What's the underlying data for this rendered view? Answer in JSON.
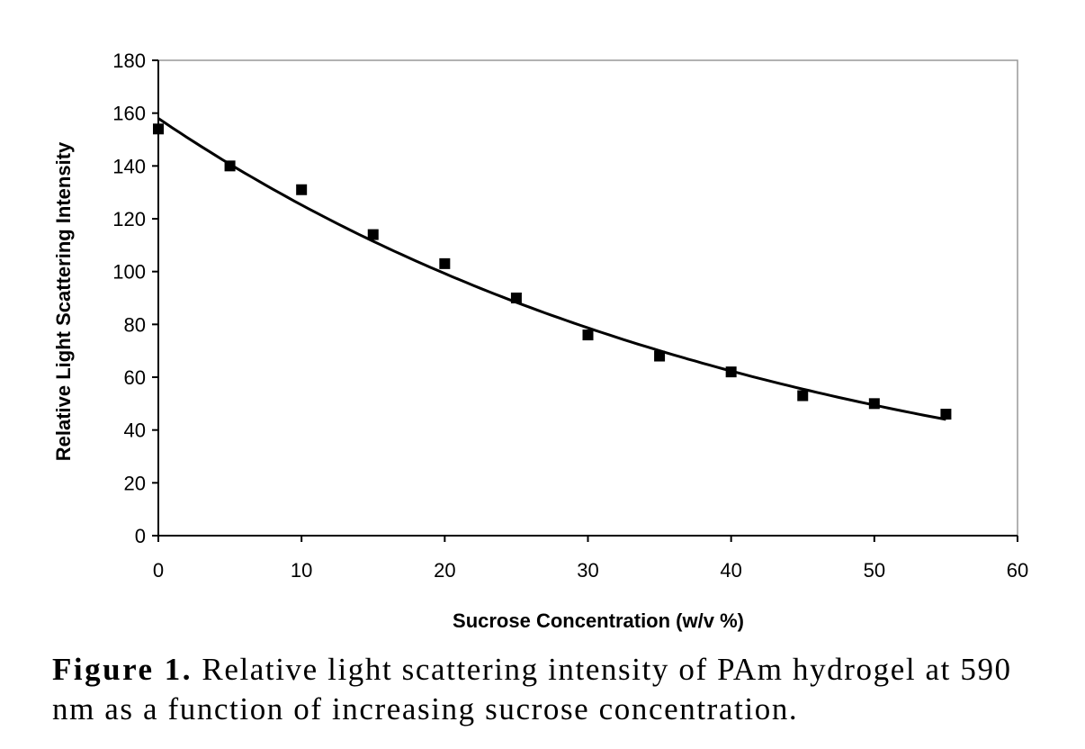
{
  "chart_data": {
    "type": "scatter",
    "xlabel": "Sucrose Concentration (w/v %)",
    "ylabel": "Relative Light Scattering Intensity",
    "xlim": [
      0,
      60
    ],
    "ylim": [
      0,
      180
    ],
    "xticks": [
      "0",
      "10",
      "20",
      "30",
      "40",
      "50",
      "60"
    ],
    "yticks": [
      "0",
      "20",
      "40",
      "60",
      "80",
      "100",
      "120",
      "140",
      "160",
      "180"
    ],
    "grid": false,
    "legend": "none",
    "marker": "square",
    "series": [
      {
        "x": [
          0,
          5,
          10,
          15,
          20,
          25,
          30,
          35,
          40,
          45,
          50,
          55
        ],
        "y": [
          154,
          140,
          131,
          114,
          103,
          90,
          76,
          68,
          62,
          53,
          50,
          46
        ]
      }
    ],
    "fit": {
      "type": "exponential",
      "x": [
        0,
        5,
        10,
        15,
        20,
        25,
        30,
        35,
        40,
        45,
        50,
        55
      ],
      "y": [
        158,
        141,
        126,
        112,
        100,
        89,
        79,
        70,
        62,
        55,
        50,
        44
      ]
    }
  },
  "caption": {
    "label": "Figure 1.",
    "text": "Relative light scattering intensity of PAm hydrogel at 590 nm as a function of increasing sucrose concentration."
  }
}
